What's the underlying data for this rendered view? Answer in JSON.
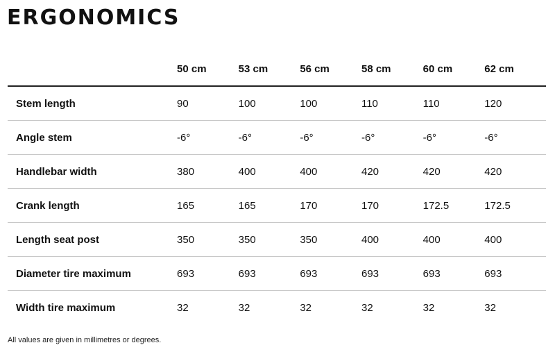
{
  "title": "ERGONOMICS",
  "table": {
    "label_header": "",
    "sizes": [
      "50 cm",
      "53 cm",
      "56 cm",
      "58 cm",
      "60 cm",
      "62 cm"
    ],
    "rows": [
      {
        "label": "Stem length",
        "values": [
          "90",
          "100",
          "100",
          "110",
          "110",
          "120"
        ]
      },
      {
        "label": "Angle stem",
        "values": [
          "-6°",
          "-6°",
          "-6°",
          "-6°",
          "-6°",
          "-6°"
        ]
      },
      {
        "label": "Handlebar width",
        "values": [
          "380",
          "400",
          "400",
          "420",
          "420",
          "420"
        ]
      },
      {
        "label": "Crank length",
        "values": [
          "165",
          "165",
          "170",
          "170",
          "172.5",
          "172.5"
        ]
      },
      {
        "label": "Length seat post",
        "values": [
          "350",
          "350",
          "350",
          "400",
          "400",
          "400"
        ]
      },
      {
        "label": "Diameter tire maximum",
        "values": [
          "693",
          "693",
          "693",
          "693",
          "693",
          "693"
        ]
      },
      {
        "label": "Width tire maximum",
        "values": [
          "32",
          "32",
          "32",
          "32",
          "32",
          "32"
        ]
      }
    ]
  },
  "footnote": "All values are given in millimetres or degrees."
}
